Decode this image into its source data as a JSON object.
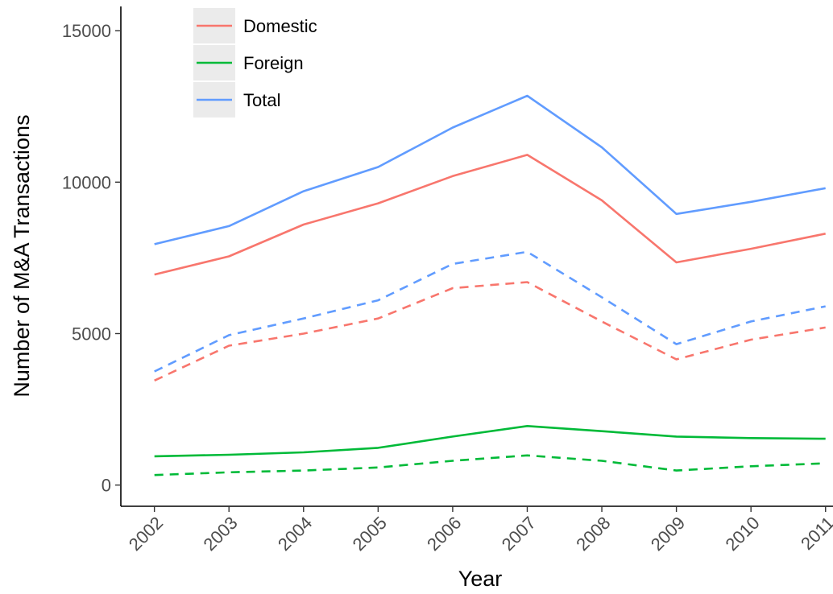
{
  "chart_data": {
    "type": "line",
    "title": "",
    "xlabel": "Year",
    "ylabel": "Number of M&A Transactions",
    "x": [
      2002,
      2003,
      2004,
      2005,
      2006,
      2007,
      2008,
      2009,
      2010,
      2011
    ],
    "x_tick_labels": [
      "2002",
      "2003",
      "2004",
      "2005",
      "2006",
      "2007",
      "2008",
      "2009",
      "2010",
      "2011"
    ],
    "xlim": [
      2001.55,
      2011.1
    ],
    "ylim": [
      -700,
      15800
    ],
    "y_ticks": [
      0,
      5000,
      10000,
      15000
    ],
    "y_tick_labels": [
      "0",
      "5000",
      "10000",
      "15000"
    ],
    "grid": false,
    "legend_position": "top-left",
    "legend": [
      {
        "name": "Domestic",
        "color": "#F8766D"
      },
      {
        "name": "Foreign",
        "color": "#00BA38"
      },
      {
        "name": "Total",
        "color": "#619CFF"
      }
    ],
    "series": [
      {
        "group": "Domestic",
        "line_style": "solid",
        "color": "#F8766D",
        "values": [
          6950,
          7550,
          8600,
          9300,
          10200,
          10900,
          9400,
          7350,
          7800,
          8300
        ]
      },
      {
        "group": "Domestic",
        "line_style": "dashed",
        "color": "#F8766D",
        "values": [
          3450,
          4600,
          5000,
          5500,
          6500,
          6700,
          5400,
          4150,
          4800,
          5200
        ]
      },
      {
        "group": "Foreign",
        "line_style": "solid",
        "color": "#00BA38",
        "values": [
          950,
          1000,
          1080,
          1230,
          1600,
          1950,
          1780,
          1600,
          1550,
          1530
        ]
      },
      {
        "group": "Foreign",
        "line_style": "dashed",
        "color": "#00BA38",
        "values": [
          330,
          420,
          480,
          580,
          800,
          980,
          800,
          480,
          620,
          720
        ]
      },
      {
        "group": "Total",
        "line_style": "solid",
        "color": "#619CFF",
        "values": [
          7950,
          8550,
          9700,
          10500,
          11800,
          12850,
          11150,
          8950,
          9350,
          9800
        ]
      },
      {
        "group": "Total",
        "line_style": "dashed",
        "color": "#619CFF",
        "values": [
          3750,
          4950,
          5500,
          6100,
          7300,
          7700,
          6200,
          4650,
          5400,
          5900
        ]
      }
    ]
  }
}
